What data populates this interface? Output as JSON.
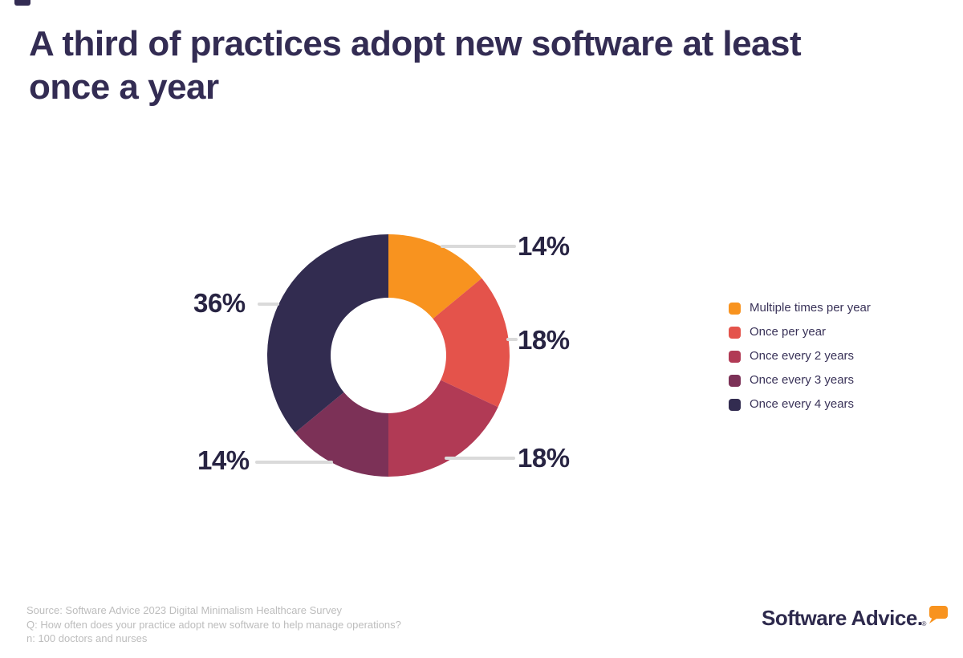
{
  "title_lines": [
    "A third of practices adopt new software at least",
    "once a year"
  ],
  "chart_data": {
    "type": "pie",
    "subtype": "donut",
    "title": "A third of practices adopt new software at least once a year",
    "categories": [
      "Multiple times per year",
      "Once per year",
      "Once every 2 years",
      "Once every 3 years",
      "Once every 4 years"
    ],
    "values": [
      14,
      18,
      18,
      14,
      36
    ],
    "unit": "%",
    "point_labels": [
      "14%",
      "18%",
      "18%",
      "14%",
      "36%"
    ],
    "colors": [
      "#F8931F",
      "#E4534B",
      "#B13A55",
      "#7C3157",
      "#322C50"
    ],
    "legend_position": "right",
    "start_angle_deg": 0,
    "direction": "clockwise",
    "inner_radius_ratio": 0.48,
    "leader_line_color": "#DADADA",
    "label_color": "#282443"
  },
  "footer": {
    "source_lines": [
      "Source: Software Advice 2023 Digital Minimalism Healthcare Survey",
      "Q: How often does your practice adopt new software to help manage operations?",
      "n: 100 doctors and nurses"
    ]
  },
  "logo": {
    "text": "Software Advice.",
    "registered": "®",
    "text_color": "#2E2A4D",
    "bubble_color": "#F8931F"
  },
  "theme": {
    "title_color": "#332C53",
    "background": "#FFFFFF",
    "source_text_color": "#BDBDBD"
  }
}
